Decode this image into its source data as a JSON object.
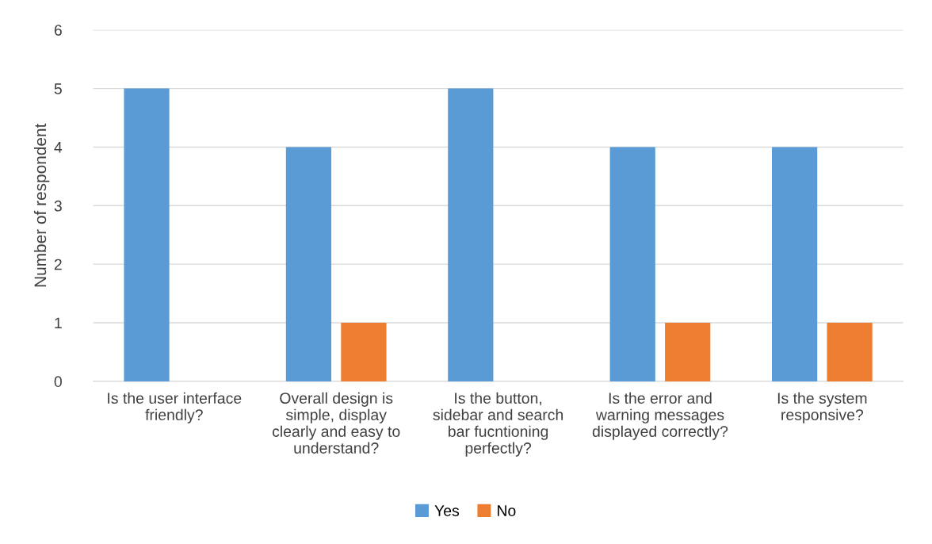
{
  "chart_data": {
    "type": "bar",
    "ylabel": "Number of respondent",
    "categories": [
      "Is the user interface\nfriendly?",
      "Overall design is\nsimple, display\nclearly and easy to\nunderstand?",
      "Is the button,\nsidebar and search\nbar fucntioning\nperfectly?",
      "Is the error and\nwarning messages\ndisplayed correctly?",
      "Is the system\nresponsive?"
    ],
    "series": [
      {
        "name": "Yes",
        "color": "#5b9bd5",
        "values": [
          5,
          4,
          5,
          4,
          4
        ]
      },
      {
        "name": "No",
        "color": "#ed7d31",
        "values": [
          0,
          1,
          0,
          1,
          1
        ]
      }
    ],
    "ylim": [
      0,
      6
    ],
    "yticks": [
      0,
      1,
      2,
      3,
      4,
      5,
      6
    ],
    "grid": "y",
    "legend": "bottom"
  }
}
